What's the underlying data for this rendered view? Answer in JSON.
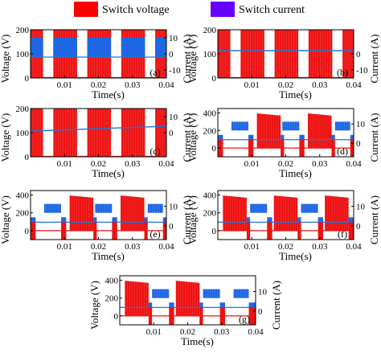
{
  "legend": {
    "voltage_label": "Switch voltage",
    "current_label": "Switch current",
    "voltage_color": "#ff0000",
    "current_color": "#6600ff"
  },
  "colors": {
    "voltage": "#ee1111",
    "current": "#1f66e5",
    "current_line": "#1f78d1"
  },
  "axis_titles": {
    "x": "Time(s)",
    "y_left": "Voltage (V)",
    "y_right": "Current (A)"
  },
  "chart_data": [
    {
      "type": "line",
      "panel": "(a)",
      "xlim": [
        0,
        0.04
      ],
      "xticks": [
        0.01,
        0.02,
        0.03,
        0.04
      ],
      "ylim": [
        0,
        200
      ],
      "yticks": [
        0,
        100,
        200
      ],
      "y2lim": [
        -15,
        15
      ],
      "y2ticks": [
        -10,
        0,
        10
      ],
      "xlabel": "Time(s)",
      "ylabel": "Voltage (V)",
      "y2label": "Current (A)",
      "series": [
        {
          "name": "Switch voltage",
          "kind": "switching_bursts",
          "high": 200,
          "low": 0,
          "intervals": [
            [
              0,
              0.0037
            ],
            [
              0.0067,
              0.0137
            ],
            [
              0.0167,
              0.0237
            ],
            [
              0.0267,
              0.0337
            ],
            [
              0.0367,
              0.04
            ]
          ]
        },
        {
          "name": "Switch current",
          "kind": "switching_bursts",
          "high": 10,
          "low": -2,
          "intervals": [
            [
              0,
              0.0037
            ],
            [
              0.0067,
              0.0137
            ],
            [
              0.0167,
              0.0237
            ],
            [
              0.0267,
              0.0337
            ],
            [
              0.0367,
              0.04
            ]
          ],
          "baseline": -2
        }
      ]
    },
    {
      "type": "line",
      "panel": "(b)",
      "xlim": [
        0,
        0.04
      ],
      "xticks": [
        0.01,
        0.02,
        0.03,
        0.04
      ],
      "ylim": [
        0,
        200
      ],
      "yticks": [
        0,
        100,
        200
      ],
      "y2lim": [
        -15,
        15
      ],
      "y2ticks": [
        -10,
        0
      ],
      "xlabel": "Time(s)",
      "ylabel": "Voltage (V)",
      "y2label": "Current (A)",
      "series": [
        {
          "name": "Switch voltage",
          "kind": "switching_bursts",
          "high": 200,
          "low": 0,
          "intervals": [
            [
              0,
              0.0037
            ],
            [
              0.0067,
              0.0137
            ],
            [
              0.0167,
              0.0237
            ],
            [
              0.0267,
              0.0337
            ],
            [
              0.0367,
              0.04
            ]
          ]
        },
        {
          "name": "Switch current",
          "kind": "dc_line",
          "value": 2
        }
      ]
    },
    {
      "type": "line",
      "panel": "(c)",
      "xlim": [
        0,
        0.04
      ],
      "xticks": [
        0.01,
        0.02,
        0.03,
        0.04
      ],
      "ylim": [
        0,
        200
      ],
      "yticks": [
        0,
        100,
        200
      ],
      "y2lim": [
        -15,
        15
      ],
      "y2ticks": [
        0,
        10
      ],
      "xlabel": "Time(s)",
      "ylabel": "Voltage (V)",
      "y2label": "Current (A)",
      "series": [
        {
          "name": "Switch voltage",
          "kind": "switching_bursts",
          "high": 200,
          "low": 0,
          "intervals": [
            [
              0,
              0.0037
            ],
            [
              0.0067,
              0.0137
            ],
            [
              0.0167,
              0.0237
            ],
            [
              0.0267,
              0.0337
            ],
            [
              0.0367,
              0.04
            ]
          ]
        },
        {
          "name": "Switch current",
          "kind": "dc_line",
          "value": 1
        }
      ]
    },
    {
      "type": "line",
      "panel": "(d)",
      "xlim": [
        0,
        0.04
      ],
      "xticks": [
        0.01,
        0.02,
        0.03,
        0.04
      ],
      "ylim": [
        -100,
        450
      ],
      "yticks": [
        0,
        200,
        400
      ],
      "y2lim": [
        -7,
        18
      ],
      "y2ticks": [
        0,
        10
      ],
      "xlabel": "Time(s)",
      "ylabel": "Voltage (V)",
      "y2label": "Current (A)",
      "series": [
        {
          "name": "Switch voltage",
          "kind": "segments",
          "segments": [
            [
              0.0,
              0.0,
              180
            ],
            [
              0.0,
              0.004,
              -100
            ],
            [
              0.004,
              0.0091,
              0
            ],
            [
              0.0091,
              0.0102,
              -100
            ],
            [
              0.0102,
              0.0102,
              0
            ],
            [
              0.0115,
              0.0185,
              380
            ],
            [
              0.0185,
              0.0196,
              -100
            ],
            [
              0.0196,
              0.0242,
              0
            ],
            [
              0.0242,
              0.0255,
              -100
            ],
            [
              0.0265,
              0.0335,
              380
            ],
            [
              0.0335,
              0.0346,
              -100
            ],
            [
              0.0346,
              0.039,
              0
            ],
            [
              0.039,
              0.04,
              -100
            ]
          ]
        },
        {
          "name": "Switch current",
          "kind": "blocks",
          "blocks": [
            [
              0.004,
              0.009,
              10,
              4
            ],
            [
              0.0195,
              0.0242,
              10,
              4
            ],
            [
              0.0346,
              0.039,
              10,
              4
            ],
            [
              0.0,
              0.0025,
              4,
              -3
            ]
          ]
        }
      ]
    },
    {
      "type": "line",
      "panel": "(e)",
      "xlim": [
        0,
        0.04
      ],
      "xticks": [
        0.01,
        0.02,
        0.03,
        0.04
      ],
      "ylim": [
        -100,
        450
      ],
      "yticks": [
        0,
        200,
        400
      ],
      "y2lim": [
        -7,
        18
      ],
      "y2ticks": [
        0,
        10
      ],
      "xlabel": "Time(s)",
      "ylabel": "Voltage (V)",
      "y2label": "Current (A)",
      "series": [
        {
          "name": "Switch voltage",
          "kind": "pattern",
          "on_high": 400,
          "off_low": 0
        }
      ]
    },
    {
      "type": "line",
      "panel": "(f)",
      "xlim": [
        0,
        0.04
      ],
      "xticks": [
        0.01,
        0.02,
        0.03,
        0.04
      ],
      "ylim": [
        -100,
        450
      ],
      "yticks": [
        0,
        200,
        400
      ],
      "y2lim": [
        -7,
        18
      ],
      "y2ticks": [
        0,
        10
      ],
      "xlabel": "Time(s)",
      "ylabel": "Voltage (V)",
      "y2label": "Current (A)",
      "series": [
        {
          "name": "Switch voltage",
          "kind": "pattern",
          "on_high": 400,
          "off_low": 0
        }
      ]
    },
    {
      "type": "line",
      "panel": "(g)",
      "xlim": [
        0,
        0.04
      ],
      "xticks": [
        0.01,
        0.02,
        0.03,
        0.04
      ],
      "ylim": [
        -100,
        450
      ],
      "yticks": [
        0,
        200,
        400
      ],
      "y2lim": [
        -7,
        18
      ],
      "y2ticks": [
        0,
        10
      ],
      "xlabel": "Time(s)",
      "ylabel": "Voltage (V)",
      "y2label": "Current (A)",
      "series": [
        {
          "name": "Switch voltage",
          "kind": "pattern",
          "on_high": 400,
          "off_low": 0
        }
      ]
    }
  ]
}
